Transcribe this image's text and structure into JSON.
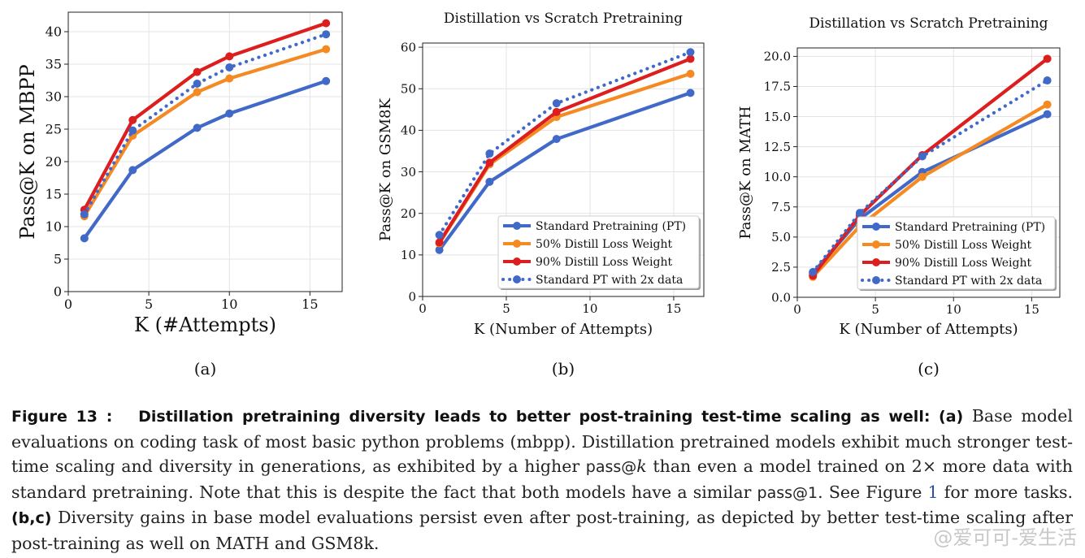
{
  "chart_data": [
    {
      "type": "line",
      "panel_label": "(a)",
      "title": "",
      "xlabel": "K (#Attempts)",
      "ylabel": "Pass@K on MBPP",
      "xlim": [
        0,
        17
      ],
      "ylim": [
        0,
        43
      ],
      "xticks": [
        0,
        5,
        10,
        15
      ],
      "yticks": [
        0,
        5,
        10,
        15,
        20,
        25,
        30,
        35,
        40
      ],
      "ytick_labels": [
        "0",
        "5",
        "10",
        "15",
        "20",
        "25",
        "30",
        "35",
        "40"
      ],
      "grid": true,
      "legend": null,
      "x": [
        1,
        4,
        8,
        10,
        16
      ],
      "series": [
        {
          "name": "Standard Pretraining (PT)",
          "color": "#4169c8",
          "style": "solid",
          "values": [
            8.2,
            18.7,
            25.2,
            27.4,
            32.4
          ]
        },
        {
          "name": "50% Distill Loss Weight",
          "color": "#f58a23",
          "style": "solid",
          "values": [
            11.6,
            24.0,
            30.7,
            32.8,
            37.3
          ]
        },
        {
          "name": "90% Distill Loss Weight",
          "color": "#dd1e1e",
          "style": "solid",
          "values": [
            12.6,
            26.4,
            33.8,
            36.2,
            41.3
          ]
        },
        {
          "name": "Standard PT with 2x data",
          "color": "#4169c8",
          "style": "dotted",
          "values": [
            11.9,
            24.8,
            32.0,
            34.5,
            39.6
          ]
        }
      ]
    },
    {
      "type": "line",
      "panel_label": "(b)",
      "title": "Distillation vs Scratch Pretraining",
      "xlabel": "K (Number of Attempts)",
      "ylabel": "Pass@K on GSM8K",
      "xlim": [
        0,
        16.8
      ],
      "ylim": [
        0,
        61
      ],
      "xticks": [
        0,
        5,
        10,
        15
      ],
      "yticks": [
        0,
        10,
        20,
        30,
        40,
        50,
        60
      ],
      "ytick_labels": [
        "0",
        "10",
        "20",
        "30",
        "40",
        "50",
        "60"
      ],
      "grid": true,
      "legend": "lower right",
      "x": [
        1,
        4,
        8,
        16
      ],
      "series": [
        {
          "name": "Standard Pretraining (PT)",
          "color": "#4169c8",
          "style": "solid",
          "values": [
            11.2,
            27.6,
            37.9,
            49.0
          ]
        },
        {
          "name": "50% Distill Loss Weight",
          "color": "#f58a23",
          "style": "solid",
          "values": [
            12.8,
            31.8,
            43.2,
            53.6
          ]
        },
        {
          "name": "90% Distill Loss Weight",
          "color": "#dd1e1e",
          "style": "solid",
          "values": [
            13.0,
            32.2,
            44.4,
            57.2
          ]
        },
        {
          "name": "Standard PT with 2x data",
          "color": "#4169c8",
          "style": "dotted",
          "values": [
            14.8,
            34.4,
            46.5,
            58.8
          ]
        }
      ]
    },
    {
      "type": "line",
      "panel_label": "(c)",
      "title": "Distillation vs Scratch Pretraining",
      "xlabel": "K (Number of Attempts)",
      "ylabel": "Pass@K on MATH",
      "xlim": [
        0,
        16.8
      ],
      "ylim": [
        0,
        20.7
      ],
      "xticks": [
        0,
        5,
        10,
        15
      ],
      "yticks": [
        0,
        2.5,
        5,
        7.5,
        10,
        12.5,
        15,
        17.5,
        20
      ],
      "ytick_labels": [
        "0.0",
        "2.5",
        "5.0",
        "7.5",
        "10.0",
        "12.5",
        "15.0",
        "17.5",
        "20.0"
      ],
      "grid": true,
      "legend": "lower right",
      "x": [
        1,
        4,
        8,
        16
      ],
      "series": [
        {
          "name": "Standard Pretraining (PT)",
          "color": "#4169c8",
          "style": "solid",
          "values": [
            2.0,
            6.5,
            10.4,
            15.2
          ]
        },
        {
          "name": "50% Distill Loss Weight",
          "color": "#f58a23",
          "style": "solid",
          "values": [
            1.7,
            5.9,
            10.0,
            16.0
          ]
        },
        {
          "name": "90% Distill Loss Weight",
          "color": "#dd1e1e",
          "style": "solid",
          "values": [
            1.8,
            6.8,
            11.8,
            19.8
          ]
        },
        {
          "name": "Standard PT with 2x data",
          "color": "#4169c8",
          "style": "dotted",
          "values": [
            2.1,
            7.0,
            11.7,
            18.0
          ]
        }
      ]
    }
  ],
  "caption": {
    "fig_label": "Figure 13 :",
    "headline": "Distillation pretraining diversity leads to better post-training test-time scaling as well:",
    "part_a_label": "(a)",
    "part_a_text_1": " Base model evaluations on coding task of most basic python problems (mbpp). Distillation pretrained models exhibit much stronger test-time scaling and diversity in generations, as exhibited by a higher ",
    "passk": "pass@",
    "k_symbol": "k",
    "part_a_text_2": " than even a model trained on 2× more data with standard pretraining. Note that this is despite the fact that both models have a similar ",
    "pass1": "pass@1",
    "part_a_text_3": ". See Figure ",
    "figure_ref": "1",
    "part_a_text_4": " for more tasks. ",
    "part_bc_label": "(b,c)",
    "part_bc_text": " Diversity gains in base model evaluations persist even after post-training, as depicted by better test-time scaling after post-training as well on MATH and GSM8k."
  },
  "watermark": "@爱可可-爱生活"
}
